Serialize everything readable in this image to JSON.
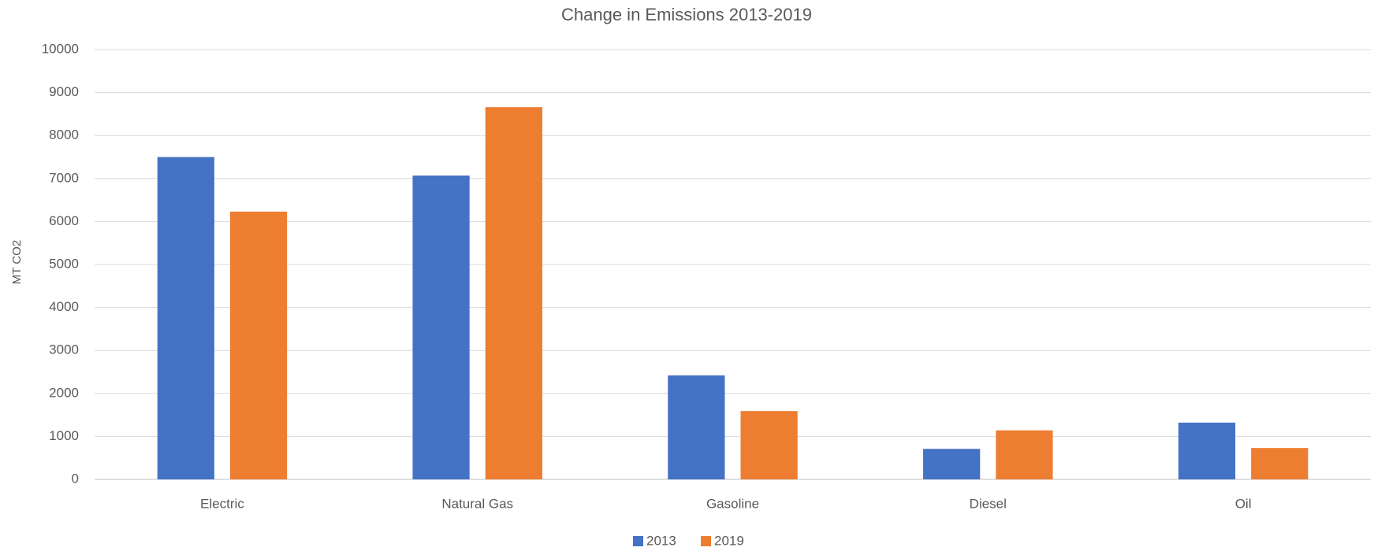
{
  "chart_data": {
    "type": "bar",
    "title": "Change in Emissions 2013-2019",
    "y_label": "MT CO2",
    "categories": [
      "Electric",
      "Natural Gas",
      "Gasoline",
      "Diesel",
      "Oil"
    ],
    "series": [
      {
        "name": "2013",
        "color": "#4472c4",
        "values": [
          7500,
          7070,
          2420,
          710,
          1320
        ]
      },
      {
        "name": "2019",
        "color": "#ed7d31",
        "values": [
          6230,
          8660,
          1590,
          1140,
          730
        ]
      }
    ],
    "ylim": [
      0,
      10000
    ],
    "yticks": [
      0,
      1000,
      2000,
      3000,
      4000,
      5000,
      6000,
      7000,
      8000,
      9000,
      10000
    ],
    "grid": true,
    "legend": "bottom"
  }
}
